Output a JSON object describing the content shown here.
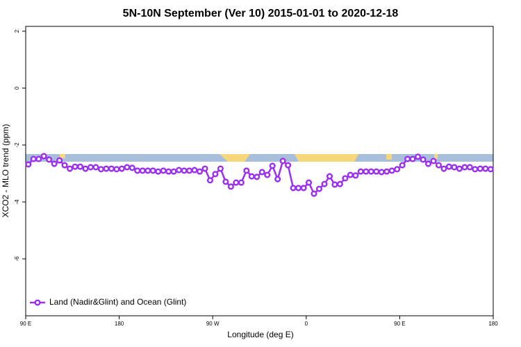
{
  "chart_data": {
    "type": "line",
    "title": "5N-10N September (Ver 10)   2015-01-01 to 2020-12-18",
    "x_label": "Longitude (deg E)",
    "y_label": "XCO2 - MLO trend (ppm)",
    "xlim": [
      90,
      540
    ],
    "xticks": [
      {
        "value": 90,
        "label": "90 E"
      },
      {
        "value": 180,
        "label": "180"
      },
      {
        "value": 270,
        "label": "90 W"
      },
      {
        "value": 360,
        "label": "0"
      },
      {
        "value": 450,
        "label": "90 E"
      },
      {
        "value": 540,
        "label": "180"
      }
    ],
    "ylim": [
      -8,
      2.17
    ],
    "yticks": [
      -6,
      -4,
      -2,
      0,
      2
    ],
    "legend": "bottom-left",
    "x": [
      92.5,
      97.5,
      102.5,
      107.5,
      112.5,
      117.5,
      122.5,
      127.5,
      132.5,
      137.5,
      142.5,
      147.5,
      152.5,
      157.5,
      162.5,
      167.5,
      172.5,
      177.5,
      182.5,
      187.5,
      192.5,
      197.5,
      202.5,
      207.5,
      212.5,
      217.5,
      222.5,
      227.5,
      232.5,
      237.5,
      242.5,
      247.5,
      252.5,
      257.5,
      262.5,
      267.5,
      272.5,
      277.5,
      282.5,
      287.5,
      292.5,
      297.5,
      302.5,
      307.5,
      312.5,
      317.5,
      322.5,
      327.5,
      332.5,
      337.5,
      342.5,
      347.5,
      352.5,
      357.5,
      362.5,
      367.5,
      372.5,
      377.5,
      382.5,
      387.5,
      392.5,
      397.5,
      402.5,
      407.5,
      412.5,
      417.5,
      422.5,
      427.5,
      432.5,
      437.5,
      442.5,
      447.5,
      452.5,
      457.5,
      462.5,
      467.5,
      472.5,
      477.5,
      482.5,
      487.5,
      492.5,
      497.5,
      502.5,
      507.5,
      512.5,
      517.5,
      522.5,
      527.5,
      532.5,
      537.5
    ],
    "series": [
      {
        "name": "Land (Nadir&Glint) and Ocean (Glint)",
        "color": "#9b30f0",
        "values": [
          -2.68,
          -2.49,
          -2.49,
          -2.39,
          -2.51,
          -2.66,
          -2.54,
          -2.71,
          -2.83,
          -2.76,
          -2.76,
          -2.83,
          -2.78,
          -2.78,
          -2.85,
          -2.83,
          -2.83,
          -2.85,
          -2.83,
          -2.78,
          -2.8,
          -2.9,
          -2.9,
          -2.9,
          -2.9,
          -2.93,
          -2.9,
          -2.93,
          -2.93,
          -2.88,
          -2.9,
          -2.9,
          -2.88,
          -2.93,
          -2.83,
          -3.24,
          -3.02,
          -2.83,
          -3.29,
          -3.46,
          -3.32,
          -3.32,
          -2.9,
          -3.1,
          -3.12,
          -2.95,
          -3.05,
          -2.73,
          -3.2,
          -2.56,
          -2.71,
          -3.51,
          -3.51,
          -3.51,
          -3.32,
          -3.71,
          -3.54,
          -3.37,
          -3.1,
          -3.39,
          -3.37,
          -3.17,
          -3.05,
          -3.07,
          -2.93,
          -2.93,
          -2.93,
          -2.93,
          -2.95,
          -2.93,
          -2.9,
          -2.85,
          -2.71,
          -2.49,
          -2.49,
          -2.41,
          -2.51,
          -2.66,
          -2.56,
          -2.71,
          -2.83,
          -2.76,
          -2.78,
          -2.83,
          -2.78,
          -2.78,
          -2.85,
          -2.83,
          -2.83,
          -2.85
        ]
      }
    ]
  }
}
